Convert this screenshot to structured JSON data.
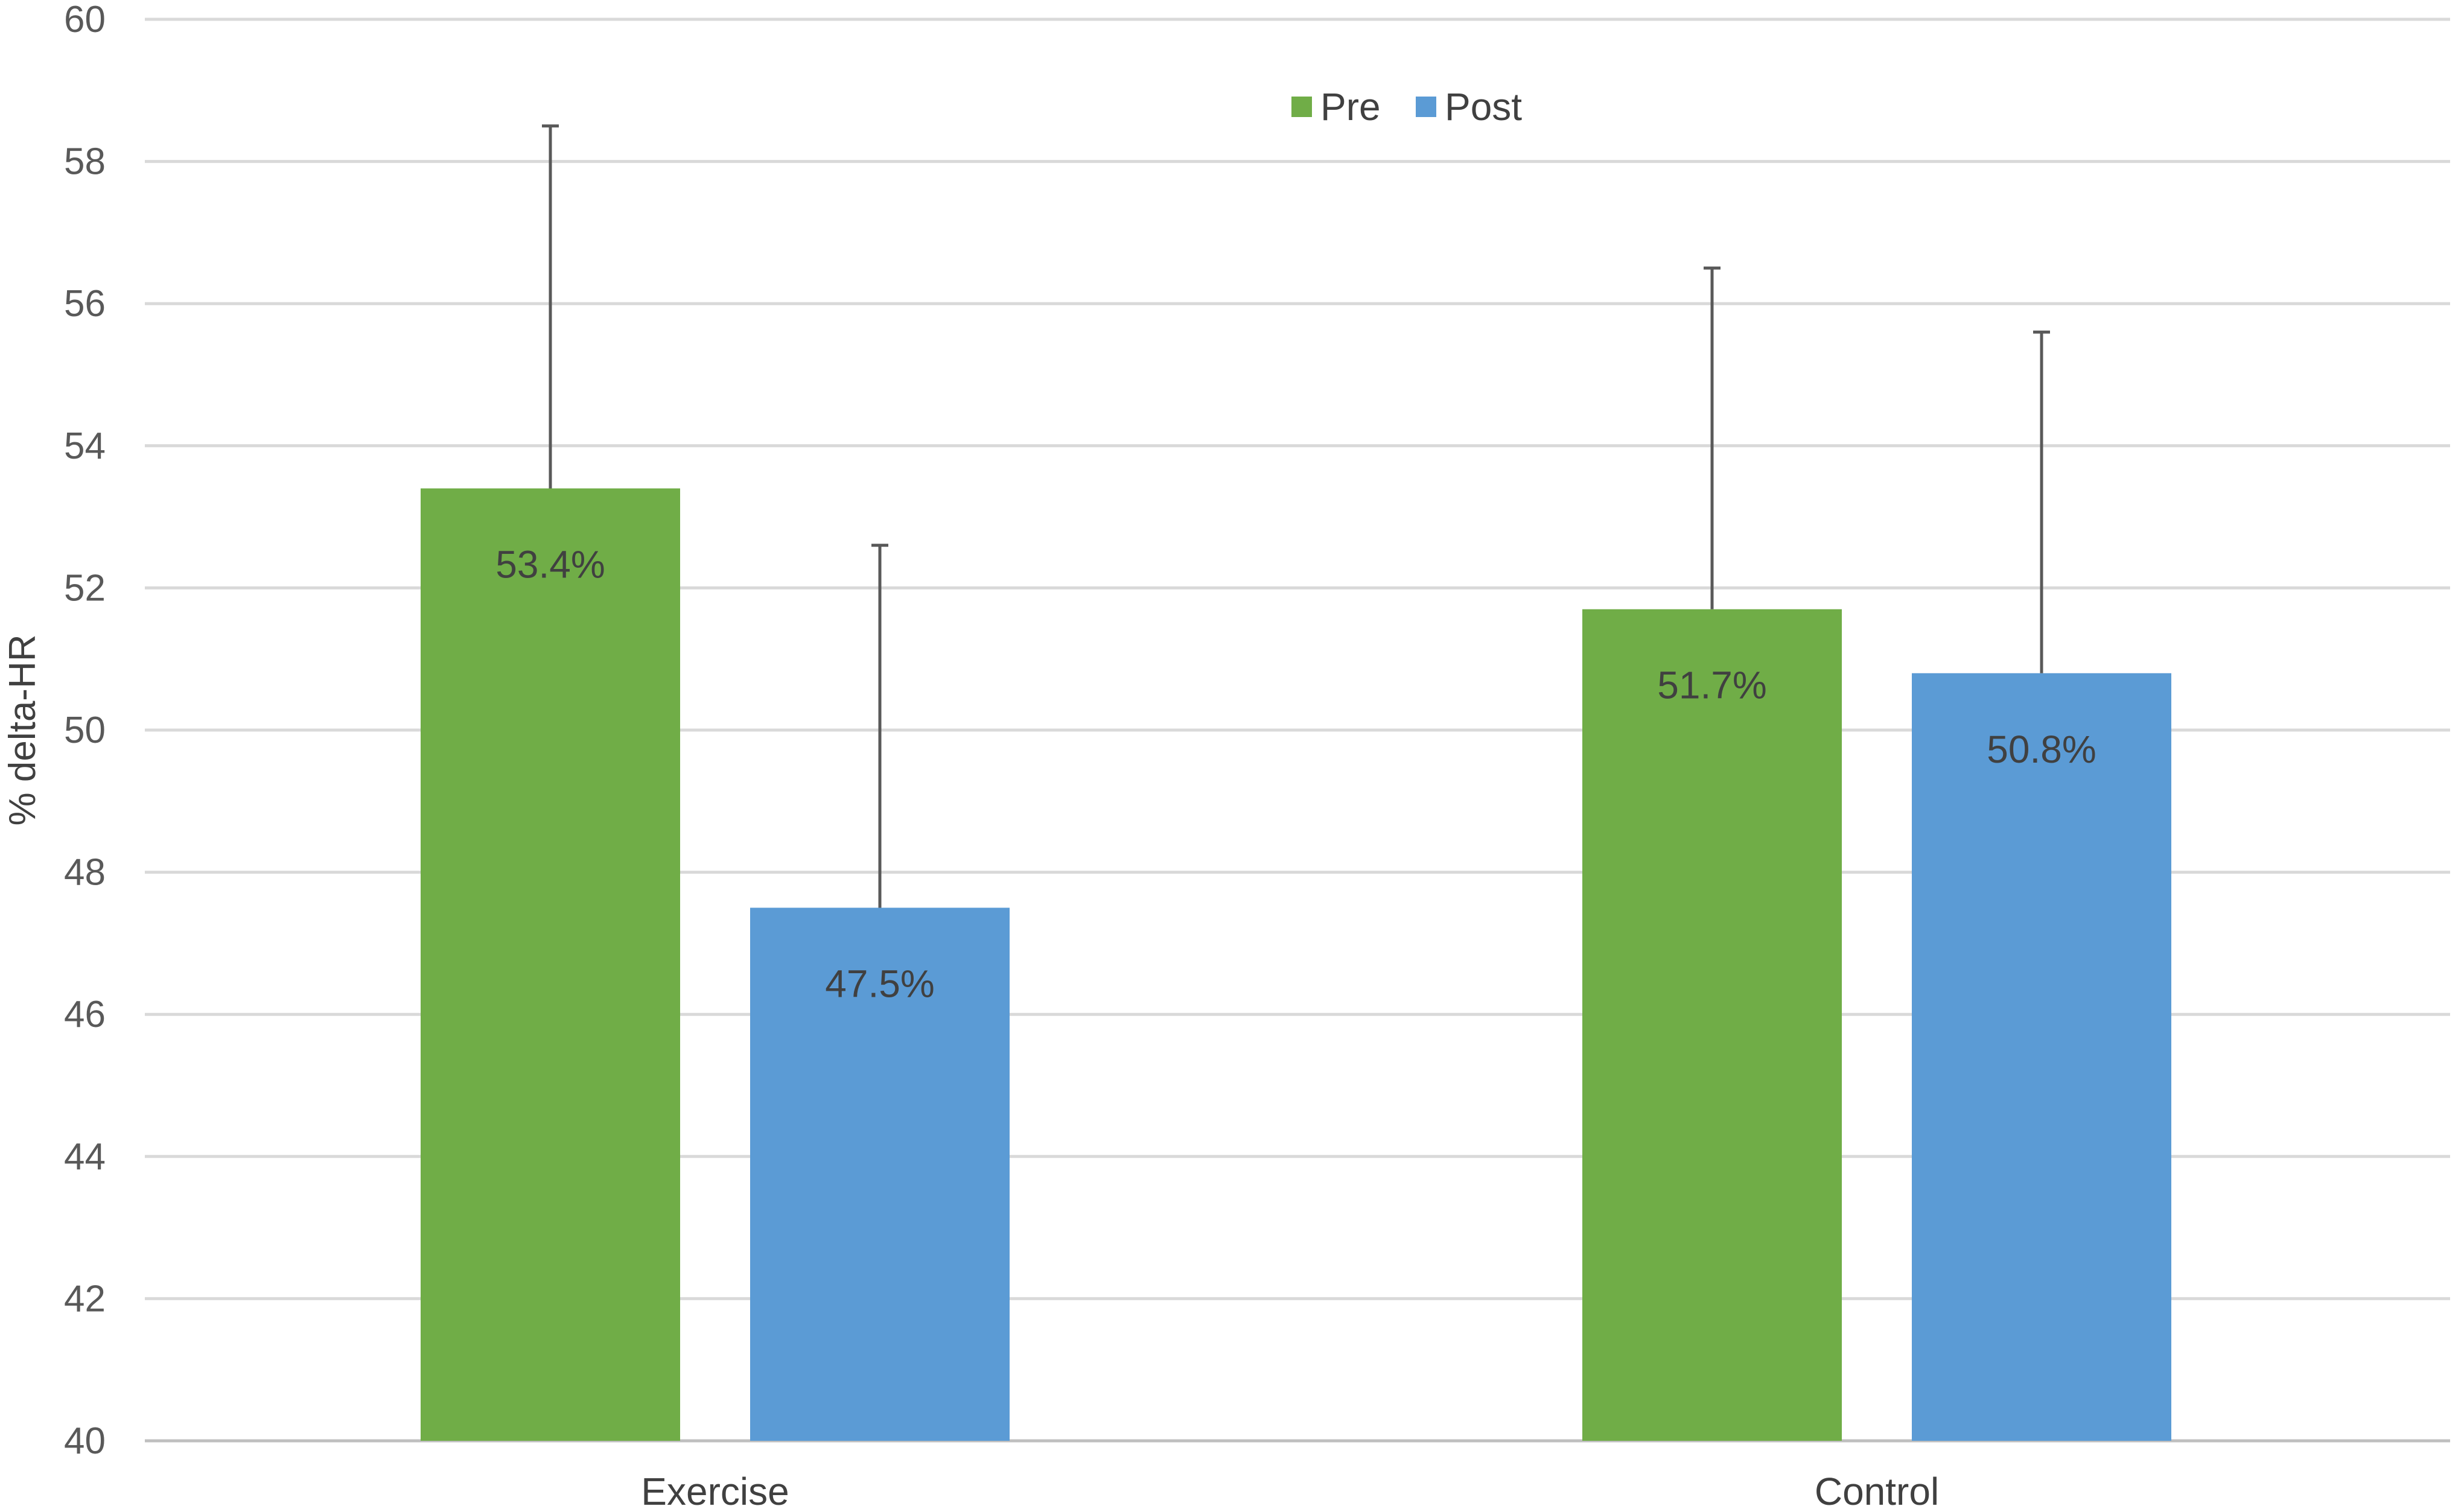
{
  "chart_data": {
    "type": "bar",
    "title": "",
    "xlabel": "",
    "ylabel": "% delta-HR",
    "ylim": [
      40,
      60
    ],
    "yticks": [
      40,
      42,
      44,
      46,
      48,
      50,
      52,
      54,
      56,
      58,
      60
    ],
    "grid": true,
    "legend_position": "top-center",
    "categories": [
      "Exercise",
      "Control"
    ],
    "series": [
      {
        "name": "Pre",
        "color": "#70ad47",
        "values": [
          53.4,
          51.7
        ],
        "error_upper": [
          58.5,
          56.5
        ],
        "labels": [
          "53.4%",
          "51.7%"
        ]
      },
      {
        "name": "Post",
        "color": "#5b9bd5",
        "values": [
          47.5,
          50.8
        ],
        "error_upper": [
          52.6,
          55.6
        ],
        "labels": [
          "47.5%",
          "50.8%"
        ]
      }
    ]
  }
}
